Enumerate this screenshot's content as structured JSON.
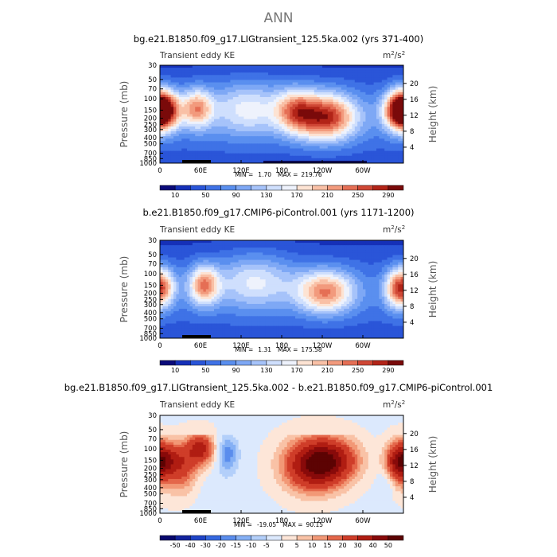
{
  "figure": {
    "title": "ANN"
  },
  "chart_data": [
    {
      "type": "heatmap",
      "title": "bg.e21.B1850.f09_g17.LIGtransient_125.5ka.002 (yrs 371-400)",
      "subtitle": "Transient eddy KE",
      "units_text": "m",
      "units_sup1": "2",
      "units_mid": "/s",
      "units_sup2": "2",
      "ylabel": "Pressure (mb)",
      "ylabel_right": "Height (km)",
      "stats": {
        "min_label": "MIN =",
        "min": "1.70",
        "max_label": "MAX =",
        "max": "219.76"
      },
      "x_ticks": [
        {
          "lon": 0,
          "label": "0"
        },
        {
          "lon": 60,
          "label": "60E"
        },
        {
          "lon": 120,
          "label": "120E"
        },
        {
          "lon": 180,
          "label": "180"
        },
        {
          "lon": 240,
          "label": "120W"
        },
        {
          "lon": 300,
          "label": "60W"
        }
      ],
      "y_ticks": [
        "30",
        "50",
        "70",
        "100",
        "150",
        "200",
        "250",
        "300",
        "400",
        "500",
        "700",
        "850",
        "1000"
      ],
      "y_ticks_right": [
        "20",
        "16",
        "12",
        "8",
        "4"
      ],
      "colorbar_ticks": [
        "10",
        "50",
        "90",
        "130",
        "170",
        "210",
        "250",
        "290"
      ],
      "colorbar_colors": [
        "#0a0a7a",
        "#1530b8",
        "#2a55d8",
        "#3f72e6",
        "#5a8fef",
        "#7ea8f5",
        "#a6c3fa",
        "#cfdffd",
        "#eef2fc",
        "#fde3d3",
        "#f9c0a6",
        "#f29a7d",
        "#e56f55",
        "#cf4735",
        "#b22418",
        "#7a0a0a"
      ],
      "blobs": [
        {
          "lon": 0,
          "p": 150,
          "v": 180,
          "slon": 18,
          "sp": 0.2
        },
        {
          "lon": 360,
          "p": 150,
          "v": 185,
          "slon": 18,
          "sp": 0.2
        },
        {
          "lon": 55,
          "p": 140,
          "v": 150,
          "slon": 16,
          "sp": 0.2
        },
        {
          "lon": 245,
          "p": 190,
          "v": 215,
          "slon": 32,
          "sp": 0.24
        },
        {
          "lon": 200,
          "p": 150,
          "v": 120,
          "slon": 20,
          "sp": 0.22
        },
        {
          "lon": 130,
          "p": 140,
          "v": 95,
          "slon": 40,
          "sp": 0.28
        }
      ],
      "base": 62
    },
    {
      "type": "heatmap",
      "title": "b.e21.B1850.f09_g17.CMIP6-piControl.001 (yrs 1171-1200)",
      "subtitle": "Transient eddy KE",
      "units_text": "m",
      "units_sup1": "2",
      "units_mid": "/s",
      "units_sup2": "2",
      "ylabel": "Pressure (mb)",
      "ylabel_right": "Height (km)",
      "stats": {
        "min_label": "MIN =",
        "min": "1.31",
        "max_label": "MAX =",
        "max": "175.58"
      },
      "x_ticks": [
        {
          "lon": 0,
          "label": "0"
        },
        {
          "lon": 60,
          "label": "60E"
        },
        {
          "lon": 120,
          "label": "120E"
        },
        {
          "lon": 180,
          "label": "180"
        },
        {
          "lon": 240,
          "label": "120W"
        },
        {
          "lon": 300,
          "label": "60W"
        }
      ],
      "y_ticks": [
        "30",
        "50",
        "70",
        "100",
        "150",
        "200",
        "250",
        "300",
        "400",
        "500",
        "700",
        "850",
        "1000"
      ],
      "y_ticks_right": [
        "20",
        "16",
        "12",
        "8",
        "4"
      ],
      "colorbar_ticks": [
        "10",
        "50",
        "90",
        "130",
        "170",
        "210",
        "250",
        "290"
      ],
      "colorbar_colors": [
        "#0a0a7a",
        "#1530b8",
        "#2a55d8",
        "#3f72e6",
        "#5a8fef",
        "#7ea8f5",
        "#a6c3fa",
        "#cfdffd",
        "#eef2fc",
        "#fde3d3",
        "#f9c0a6",
        "#f29a7d",
        "#e56f55",
        "#cf4735",
        "#b22418",
        "#7a0a0a"
      ],
      "blobs": [
        {
          "lon": 65,
          "p": 150,
          "v": 165,
          "slon": 16,
          "sp": 0.2
        },
        {
          "lon": 245,
          "p": 190,
          "v": 170,
          "slon": 30,
          "sp": 0.22
        },
        {
          "lon": 350,
          "p": 170,
          "v": 135,
          "slon": 14,
          "sp": 0.2
        },
        {
          "lon": 5,
          "p": 160,
          "v": 120,
          "slon": 14,
          "sp": 0.2
        },
        {
          "lon": 140,
          "p": 130,
          "v": 95,
          "slon": 40,
          "sp": 0.28
        }
      ],
      "base": 58
    },
    {
      "type": "heatmap",
      "title": "bg.e21.B1850.f09_g17.LIGtransient_125.5ka.002 - b.e21.B1850.f09_g17.CMIP6-piControl.001",
      "subtitle": "Transient eddy KE",
      "units_text": "m",
      "units_sup1": "2",
      "units_mid": "/s",
      "units_sup2": "2",
      "ylabel": "Pressure (mb)",
      "ylabel_right": "Height (km)",
      "stats": {
        "min_label": "MIN =",
        "min": "-19.05",
        "max_label": "MAX =",
        "max": "90.15"
      },
      "x_ticks": [
        {
          "lon": 0,
          "label": "0"
        },
        {
          "lon": 60,
          "label": "60E"
        },
        {
          "lon": 120,
          "label": "120E"
        },
        {
          "lon": 180,
          "label": "180"
        },
        {
          "lon": 240,
          "label": "120W"
        },
        {
          "lon": 300,
          "label": "60W"
        }
      ],
      "y_ticks": [
        "30",
        "50",
        "70",
        "100",
        "150",
        "200",
        "250",
        "300",
        "400",
        "500",
        "700",
        "850",
        "1000"
      ],
      "y_ticks_right": [
        "20",
        "16",
        "12",
        "8",
        "4"
      ],
      "colorbar_ticks": [
        "-50",
        "-40",
        "-30",
        "-20",
        "-15",
        "-10",
        "-5",
        "0",
        "5",
        "10",
        "15",
        "20",
        "30",
        "40",
        "50"
      ],
      "colorbar_colors": [
        "#08086e",
        "#12239e",
        "#1f44c7",
        "#3568e0",
        "#5a8ded",
        "#85b0f5",
        "#b3cffa",
        "#dce9fd",
        "#fde6d8",
        "#f9c2a6",
        "#f29876",
        "#e4674a",
        "#cf3d29",
        "#b01d12",
        "#880a0a",
        "#5c0303"
      ],
      "blobs": [
        {
          "lon": 10,
          "p": 150,
          "v": 30,
          "slon": 14,
          "sp": 0.18
        },
        {
          "lon": 35,
          "p": 170,
          "v": 20,
          "slon": 14,
          "sp": 0.22
        },
        {
          "lon": 60,
          "p": 100,
          "v": 35,
          "slon": 14,
          "sp": 0.16
        },
        {
          "lon": 225,
          "p": 180,
          "v": 42,
          "slon": 30,
          "sp": 0.26
        },
        {
          "lon": 255,
          "p": 150,
          "v": 30,
          "slon": 28,
          "sp": 0.22
        },
        {
          "lon": 352,
          "p": 160,
          "v": 38,
          "slon": 13,
          "sp": 0.2
        },
        {
          "lon": 100,
          "p": 120,
          "v": -17,
          "slon": 11,
          "sp": 0.18
        },
        {
          "lon": 25,
          "p": 350,
          "v": 6,
          "slon": 25,
          "sp": 0.2
        },
        {
          "lon": 80,
          "p": 450,
          "v": -3,
          "slon": 20,
          "sp": 0.25
        },
        {
          "lon": 335,
          "p": 330,
          "v": -8,
          "slon": 9,
          "sp": 0.14
        }
      ],
      "base": -1
    }
  ]
}
